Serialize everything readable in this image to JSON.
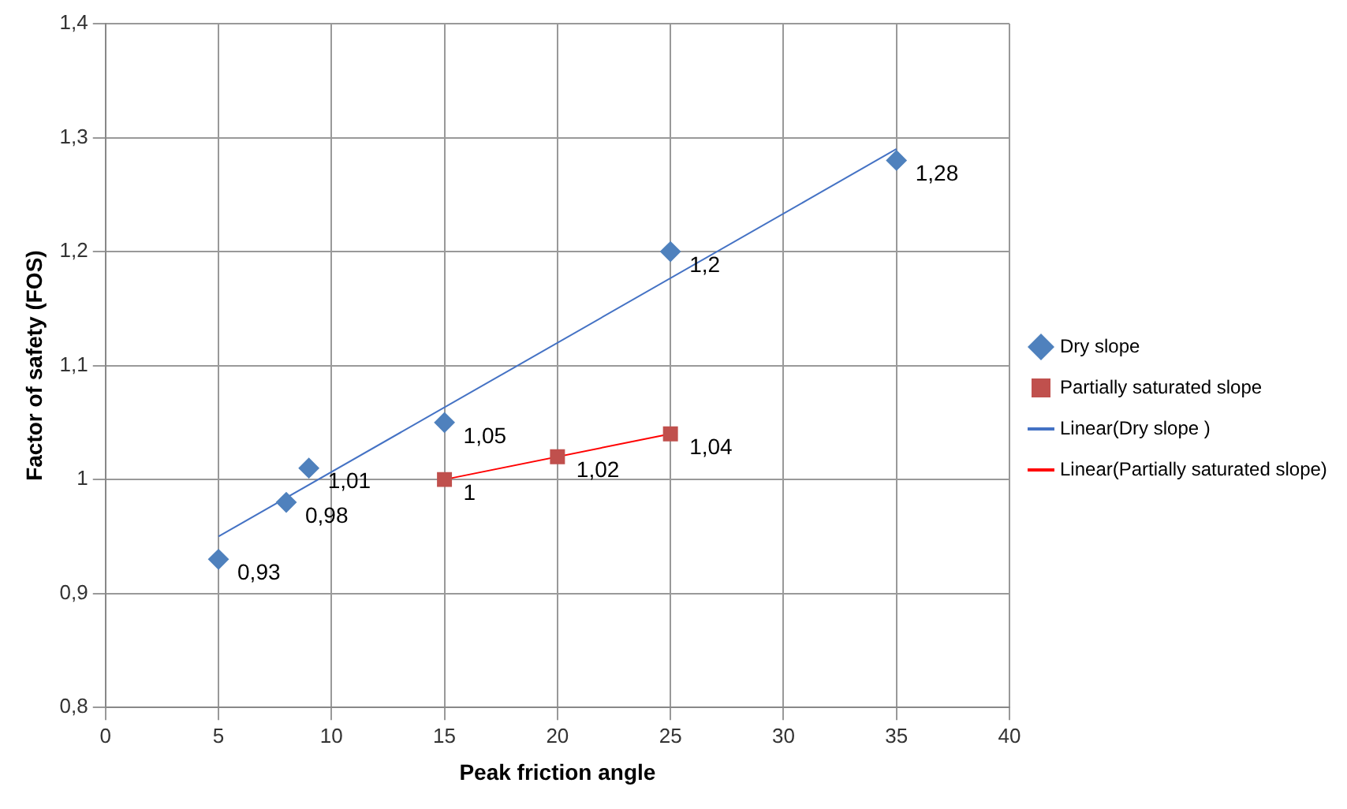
{
  "chart_data": {
    "type": "scatter",
    "xlabel": "Peak friction angle",
    "ylabel": "Factor of safety (FOS)",
    "xlim": [
      0,
      40
    ],
    "xticks": [
      0,
      5,
      10,
      15,
      20,
      25,
      30,
      35,
      40
    ],
    "ylim": [
      0.8,
      1.4
    ],
    "yticks": [
      {
        "value": 0.8,
        "label": "0,8"
      },
      {
        "value": 0.9,
        "label": "0,9"
      },
      1,
      {
        "value": 1.1,
        "label": "1,1"
      },
      {
        "value": 1.2,
        "label": "1,2"
      },
      {
        "value": 1.3,
        "label": "1,3"
      },
      {
        "value": 1.4,
        "label": "1,4"
      }
    ],
    "grid": true,
    "legend": "right",
    "series": [
      {
        "name": "Dry slope",
        "marker": "diamond",
        "color": "#4f81bd",
        "x": [
          5,
          8,
          9,
          15,
          25,
          35
        ],
        "values": [
          0.93,
          0.98,
          1.01,
          1.05,
          1.2,
          1.28
        ],
        "value_labels": [
          "0,93",
          "0,98",
          "1,01",
          "1,05",
          "1,2",
          "1,28"
        ]
      },
      {
        "name": "Partially saturated slope",
        "marker": "square",
        "color": "#c0504d",
        "x": [
          15,
          20,
          25
        ],
        "values": [
          1,
          1.02,
          1.04
        ],
        "value_labels": [
          "1",
          "1,02",
          "1,04"
        ]
      },
      {
        "name": "Linear(Dry slope )",
        "type": "line",
        "marker": "none",
        "color": "#4472c4",
        "x": [
          5,
          35
        ],
        "values": [
          0.95,
          1.29
        ]
      },
      {
        "name": "Linear(Partially saturated slope)",
        "type": "line",
        "marker": "none",
        "color": "#ff0000",
        "x": [
          15,
          25
        ],
        "values": [
          1,
          1.04
        ]
      }
    ]
  }
}
